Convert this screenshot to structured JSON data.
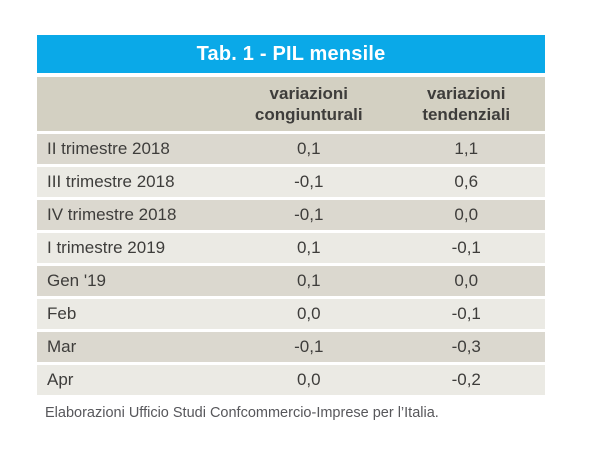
{
  "chart_data": {
    "type": "table",
    "title": "Tab. 1 - PIL mensile",
    "columns": [
      "",
      "variazioni congiunturali",
      "variazioni tendenziali"
    ],
    "rows": [
      {
        "label": "II trimestre 2018",
        "congiunturali": "0,1",
        "tendenziali": "1,1"
      },
      {
        "label": "III trimestre 2018",
        "congiunturali": "-0,1",
        "tendenziali": "0,6"
      },
      {
        "label": "IV trimestre 2018",
        "congiunturali": "-0,1",
        "tendenziali": "0,0"
      },
      {
        "label": "I trimestre 2019",
        "congiunturali": "0,1",
        "tendenziali": "-0,1"
      },
      {
        "label": "Gen '19",
        "congiunturali": "0,1",
        "tendenziali": "0,0"
      },
      {
        "label": "Feb",
        "congiunturali": "0,0",
        "tendenziali": "-0,1"
      },
      {
        "label": "Mar",
        "congiunturali": "-0,1",
        "tendenziali": "-0,3"
      },
      {
        "label": "Apr",
        "congiunturali": "0,0",
        "tendenziali": "-0,2"
      }
    ],
    "footer": "Elaborazioni Ufficio Studi Confcommercio-Imprese per l’Italia.",
    "layout": {
      "legend_position": "none",
      "grid": "row-separators-white"
    }
  },
  "colors": {
    "title_bar": "#0AA9E8",
    "title_text": "#FFFFFF",
    "header_bg": "#D3D0C2",
    "row_odd_bg": "#DBD8CF",
    "row_even_bg": "#EBEAE4",
    "text_dark": "#3E3D3B",
    "footer_text": "#57575B",
    "page_bg": "#FFFFFF"
  }
}
